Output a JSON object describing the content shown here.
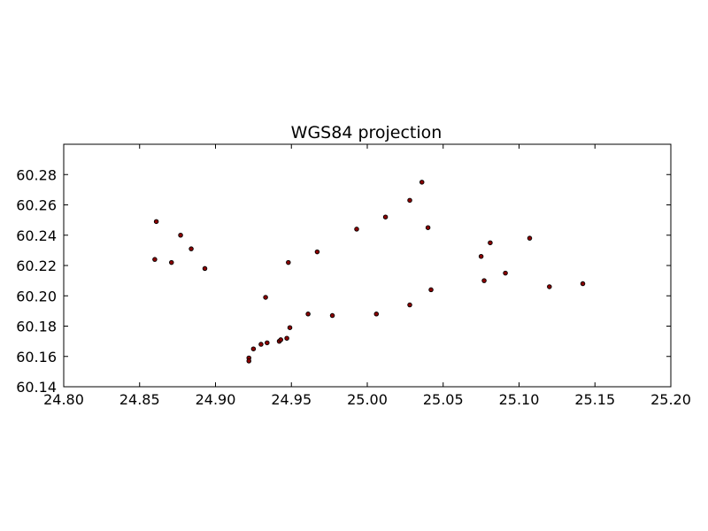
{
  "chart_data": {
    "type": "scatter",
    "title": "WGS84 projection",
    "xlabel": "",
    "ylabel": "",
    "xlim": [
      24.8,
      25.2
    ],
    "ylim": [
      60.14,
      60.3
    ],
    "xticks": [
      "24.80",
      "24.85",
      "24.90",
      "24.95",
      "25.00",
      "25.05",
      "25.10",
      "25.15",
      "25.20"
    ],
    "yticks": [
      "60.14",
      "60.16",
      "60.18",
      "60.20",
      "60.22",
      "60.24",
      "60.26",
      "60.28"
    ],
    "grid": false,
    "marker_color": "#8b0000",
    "marker_edge_color": "#000000",
    "points": [
      {
        "x": 24.861,
        "y": 60.249
      },
      {
        "x": 24.86,
        "y": 60.224
      },
      {
        "x": 24.871,
        "y": 60.222
      },
      {
        "x": 24.877,
        "y": 60.24
      },
      {
        "x": 24.884,
        "y": 60.231
      },
      {
        "x": 24.893,
        "y": 60.218
      },
      {
        "x": 24.922,
        "y": 60.159
      },
      {
        "x": 24.922,
        "y": 60.157
      },
      {
        "x": 24.925,
        "y": 60.165
      },
      {
        "x": 24.93,
        "y": 60.168
      },
      {
        "x": 24.934,
        "y": 60.169
      },
      {
        "x": 24.933,
        "y": 60.199
      },
      {
        "x": 24.942,
        "y": 60.17
      },
      {
        "x": 24.943,
        "y": 60.171
      },
      {
        "x": 24.947,
        "y": 60.172
      },
      {
        "x": 24.949,
        "y": 60.179
      },
      {
        "x": 24.948,
        "y": 60.222
      },
      {
        "x": 24.961,
        "y": 60.188
      },
      {
        "x": 24.967,
        "y": 60.229
      },
      {
        "x": 24.977,
        "y": 60.187
      },
      {
        "x": 24.993,
        "y": 60.244
      },
      {
        "x": 25.006,
        "y": 60.188
      },
      {
        "x": 25.012,
        "y": 60.252
      },
      {
        "x": 25.028,
        "y": 60.194
      },
      {
        "x": 25.028,
        "y": 60.263
      },
      {
        "x": 25.036,
        "y": 60.275
      },
      {
        "x": 25.04,
        "y": 60.245
      },
      {
        "x": 25.042,
        "y": 60.204
      },
      {
        "x": 25.075,
        "y": 60.226
      },
      {
        "x": 25.077,
        "y": 60.21
      },
      {
        "x": 25.081,
        "y": 60.235
      },
      {
        "x": 25.091,
        "y": 60.215
      },
      {
        "x": 25.107,
        "y": 60.238
      },
      {
        "x": 25.12,
        "y": 60.206
      },
      {
        "x": 25.142,
        "y": 60.208
      }
    ]
  }
}
